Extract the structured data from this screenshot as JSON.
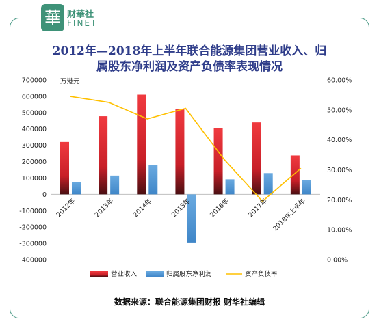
{
  "brand": {
    "logo_char": "華",
    "name_cn": "财華社",
    "name_en": "FINET"
  },
  "title_line1": "2012年—2018年上半年联合能源集团营业收入、归",
  "title_line2": "属股东净利润及资产负债率表现情况",
  "source": "数据来源：联合能源集团财报    财华社编辑",
  "chart_data": {
    "type": "bar",
    "categories": [
      "2012年",
      "2013年",
      "2014年",
      "2015年",
      "2016年",
      "2017年",
      "2018年上半年"
    ],
    "unit_label": "万港元",
    "series": [
      {
        "name": "营业收入",
        "kind": "bar",
        "axis": "left",
        "color": "#e8262e",
        "values": [
          320000,
          478000,
          610000,
          522000,
          405000,
          440000,
          238000
        ]
      },
      {
        "name": "归属股东净利润",
        "kind": "bar",
        "axis": "left",
        "color": "#5b9bd5",
        "values": [
          75000,
          115000,
          180000,
          -295000,
          92000,
          130000,
          88000
        ]
      },
      {
        "name": "资产负债率",
        "kind": "line",
        "axis": "right",
        "color": "#ffc000",
        "values": [
          54.5,
          52.5,
          47.0,
          50.5,
          33.5,
          19.5,
          30.5
        ]
      }
    ],
    "ylim_left": [
      -400000,
      700000
    ],
    "ylim_right": [
      0,
      60
    ],
    "left_ticks": [
      "700000",
      "600000",
      "500000",
      "400000",
      "300000",
      "200000",
      "100000",
      "0",
      "-100000",
      "-200000",
      "-300000",
      "-400000"
    ],
    "right_ticks": [
      "60.00%",
      "50.00%",
      "40.00%",
      "30.00%",
      "20.00%",
      "10.00%",
      "0.00%"
    ],
    "legend_position": "bottom",
    "grid": false
  }
}
